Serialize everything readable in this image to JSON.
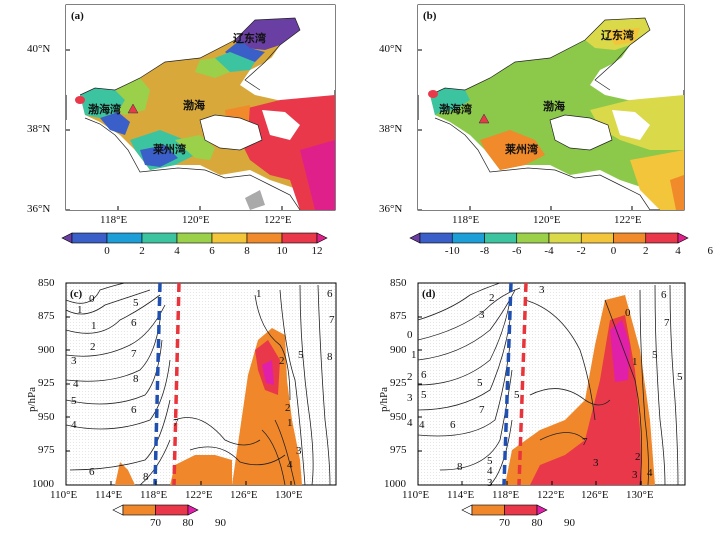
{
  "panels": {
    "a": {
      "label": "(a)",
      "places": {
        "liaodong": "辽东湾",
        "bohai_bay": "渤海湾",
        "bohai": "渤海",
        "laizhou": "莱州湾"
      }
    },
    "b": {
      "label": "(b)",
      "places": {
        "liaodong": "辽东湾",
        "bohai_bay": "渤海湾",
        "bohai": "渤海",
        "laizhou": "莱州湾"
      }
    },
    "c": {
      "label": "(c)"
    },
    "d": {
      "label": "(d)"
    }
  },
  "map_axes": {
    "y_ticks": [
      "40°N",
      "38°N",
      "36°N"
    ],
    "x_ticks": [
      "118°E",
      "120°E",
      "122°E"
    ]
  },
  "section_axes": {
    "ylabel": "p/hPa",
    "y_ticks": [
      "850",
      "875",
      "900",
      "925",
      "950",
      "975",
      "1000"
    ],
    "x_ticks": [
      "110°E",
      "114°E",
      "118°E",
      "122°E",
      "126°E",
      "130°E"
    ]
  },
  "colorbars": {
    "a": {
      "ticks": [
        "0",
        "2",
        "4",
        "6",
        "8",
        "10",
        "12"
      ],
      "colors": [
        "#6a3fa3",
        "#3a5fc8",
        "#1e9ed6",
        "#3cc4a0",
        "#9bd04a",
        "#f2c53a",
        "#f08a2a",
        "#e8384a",
        "#e0208a"
      ]
    },
    "b": {
      "ticks": [
        "-10",
        "-8",
        "-6",
        "-4",
        "-2",
        "0",
        "2",
        "4",
        "6"
      ],
      "colors": [
        "#6a3fa3",
        "#3a5fc8",
        "#1e9ed6",
        "#3cc4a0",
        "#9bd04a",
        "#d9d94a",
        "#f2c53a",
        "#f08a2a",
        "#e8384a",
        "#e0208a"
      ]
    },
    "c": {
      "ticks": [
        "70",
        "80",
        "90"
      ],
      "colors": [
        "#ffffff",
        "#f0872a",
        "#e8384a",
        "#e020a8"
      ]
    },
    "d": {
      "ticks": [
        "70",
        "80",
        "90"
      ],
      "colors": [
        "#ffffff",
        "#f0872a",
        "#e8384a",
        "#e020a8"
      ]
    }
  },
  "contour_labels": {
    "c": [
      "0",
      "1",
      "1",
      "2",
      "3",
      "4",
      "5",
      "4",
      "5",
      "6",
      "7",
      "8",
      "6",
      "6",
      "7",
      "8",
      "1",
      "2",
      "2",
      "1",
      "3",
      "4",
      "5",
      "6",
      "7",
      "8"
    ],
    "d": [
      "2",
      "3",
      "3",
      "0",
      "1",
      "2",
      "3",
      "4",
      "5",
      "5",
      "6",
      "7",
      "8",
      "4",
      "5",
      "3",
      "4",
      "5",
      "6",
      "7",
      "3",
      "0",
      "1",
      "2",
      "3",
      "4",
      "5",
      "6",
      "7",
      "5"
    ]
  }
}
